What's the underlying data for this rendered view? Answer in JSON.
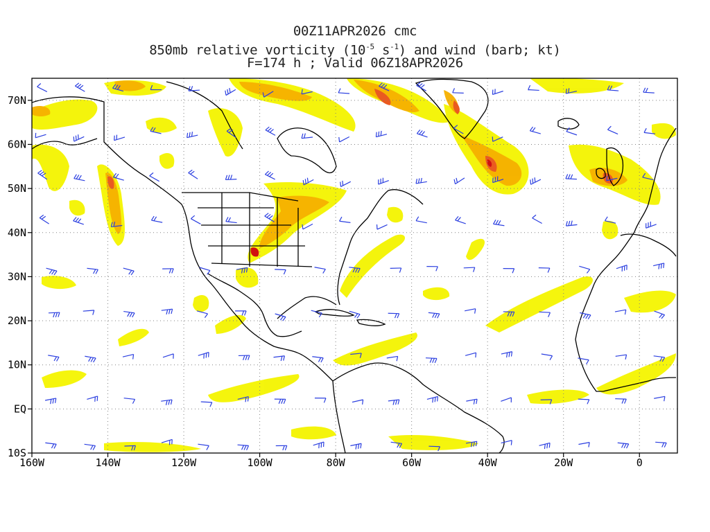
{
  "title": {
    "line1": "00Z11APR2026 cmc",
    "line2_pre": "850mb relative vorticity (10",
    "line2_sup1": "-5",
    "line2_mid": " s",
    "line2_sup2": "-1",
    "line2_post": ") and wind (barb; kt)",
    "line3": "F=174 h ; Valid 06Z18APR2026"
  },
  "map": {
    "lon_range": [
      -160,
      10
    ],
    "lat_range": [
      -10,
      75
    ],
    "lon_ticks": [
      {
        "value": -160,
        "label": "160W"
      },
      {
        "value": -140,
        "label": "140W"
      },
      {
        "value": -120,
        "label": "120W"
      },
      {
        "value": -100,
        "label": "100W"
      },
      {
        "value": -80,
        "label": "80W"
      },
      {
        "value": -60,
        "label": "60W"
      },
      {
        "value": -40,
        "label": "40W"
      },
      {
        "value": -20,
        "label": "20W"
      },
      {
        "value": 0,
        "label": "0"
      }
    ],
    "lat_ticks": [
      {
        "value": 70,
        "label": "70N"
      },
      {
        "value": 60,
        "label": "60N"
      },
      {
        "value": 50,
        "label": "50N"
      },
      {
        "value": 40,
        "label": "40N"
      },
      {
        "value": 30,
        "label": "30N"
      },
      {
        "value": 20,
        "label": "20N"
      },
      {
        "value": 10,
        "label": "10N"
      },
      {
        "value": 0,
        "label": "EQ"
      },
      {
        "value": -10,
        "label": "10S"
      }
    ],
    "colors": {
      "vort_low": "#f4f400",
      "vort_mid": "#f6b000",
      "vort_high": "#ea5a20",
      "vort_max": "#d01010",
      "barb": "#2a3ee0",
      "coast": "#000000",
      "grid": "#808080"
    }
  }
}
